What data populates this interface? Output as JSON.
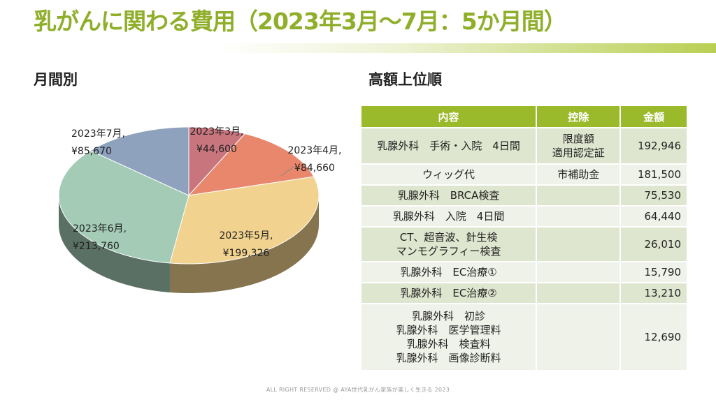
{
  "title": "乳がんに関わる費用（2023年3月～7月：5か月間）",
  "left_heading": "月間別",
  "right_heading": "高額上位順",
  "chart_data": {
    "type": "pie",
    "title": "",
    "slices": [
      {
        "label": "2023年3月,",
        "value_label": "¥44,600",
        "value": 44600,
        "color": "#c9757e"
      },
      {
        "label": "2023年4月,",
        "value_label": "¥84,660",
        "value": 84660,
        "color": "#e8876c"
      },
      {
        "label": "2023年5月,",
        "value_label": "¥199,326",
        "value": 199326,
        "color": "#f1d28e"
      },
      {
        "label": "2023年6月,",
        "value_label": "¥213,760",
        "value": 213760,
        "color": "#a3cbb6"
      },
      {
        "label": "2023年7月,",
        "value_label": "¥85,670",
        "value": 85670,
        "color": "#8ea1bd"
      }
    ]
  },
  "table": {
    "headers": [
      "内容",
      "控除",
      "金額"
    ],
    "rows": [
      {
        "item": "乳腺外科　手術・入院　4日間",
        "deduction": "限度額\n適用認定証",
        "amount": "192,946"
      },
      {
        "item": "ウィッグ代",
        "deduction": "市補助金",
        "amount": "181,500"
      },
      {
        "item": "乳腺外科　BRCA検査",
        "deduction": "",
        "amount": "75,530"
      },
      {
        "item": "乳腺外科　入院　4日間",
        "deduction": "",
        "amount": "64,440"
      },
      {
        "item": "CT、超音波、針生検\nマンモグラフィー検査",
        "deduction": "",
        "amount": "26,010"
      },
      {
        "item": "乳腺外科　EC治療①",
        "deduction": "",
        "amount": "15,790"
      },
      {
        "item": "乳腺外科　EC治療②",
        "deduction": "",
        "amount": "13,210"
      },
      {
        "item": "乳腺外科　初診\n乳腺外科　医学管理料\n乳腺外科　検査料\n乳腺外科　画像診断料",
        "deduction": "",
        "amount": "12,690"
      }
    ]
  },
  "footer": "ALL RIGHT RESERVED @ AYA世代乳がん家族が楽しく生きる 2023"
}
